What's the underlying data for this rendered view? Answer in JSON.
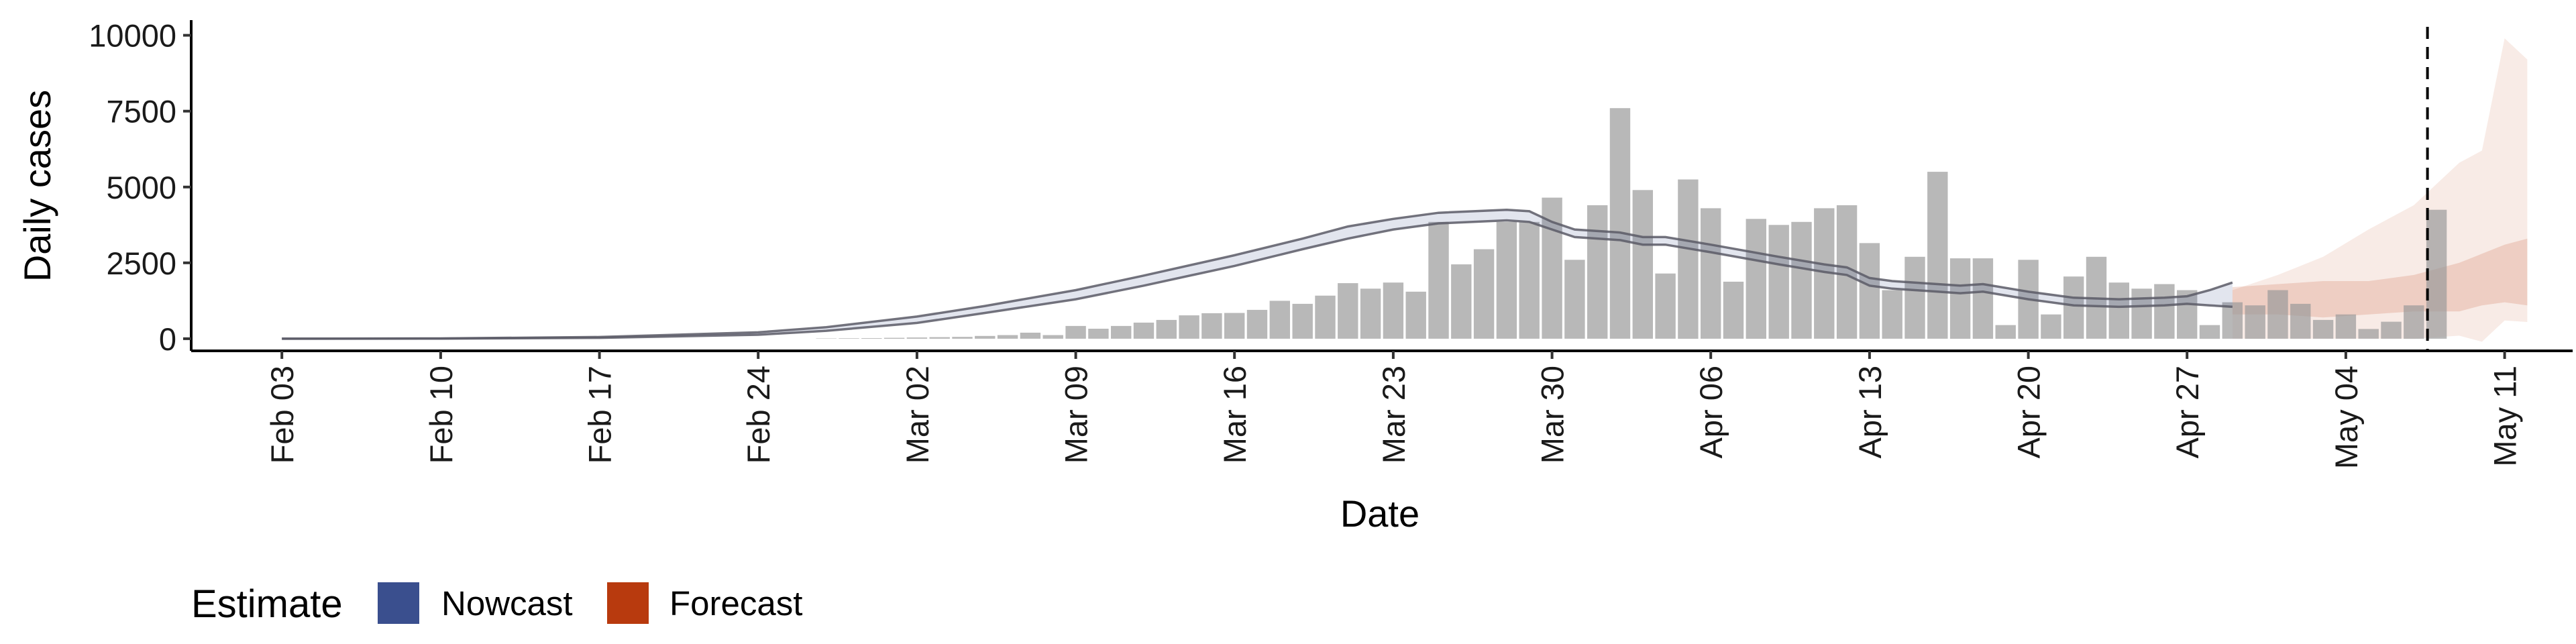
{
  "chart_data": {
    "type": "bar",
    "xlabel": "Date",
    "ylabel": "Daily cases",
    "ylim": [
      -400,
      10500
    ],
    "yticks": [
      0,
      2500,
      5000,
      7500,
      10000
    ],
    "x_start_date": "2020-02-03",
    "x_range_days": [
      -4,
      101
    ],
    "xticks": [
      {
        "day": 0,
        "label": "Feb 03"
      },
      {
        "day": 7,
        "label": "Feb 10"
      },
      {
        "day": 14,
        "label": "Feb 17"
      },
      {
        "day": 21,
        "label": "Feb 24"
      },
      {
        "day": 28,
        "label": "Mar 02"
      },
      {
        "day": 35,
        "label": "Mar 09"
      },
      {
        "day": 42,
        "label": "Mar 16"
      },
      {
        "day": 49,
        "label": "Mar 23"
      },
      {
        "day": 56,
        "label": "Mar 30"
      },
      {
        "day": 63,
        "label": "Apr 06"
      },
      {
        "day": 70,
        "label": "Apr 13"
      },
      {
        "day": 77,
        "label": "Apr 20"
      },
      {
        "day": 84,
        "label": "Apr 27"
      },
      {
        "day": 91,
        "label": "May 04"
      },
      {
        "day": 98,
        "label": "May 11"
      }
    ],
    "vline_day": 94.6,
    "bars_start_day": 24,
    "bars": [
      10,
      15,
      20,
      30,
      40,
      50,
      60,
      90,
      120,
      200,
      120,
      420,
      330,
      420,
      530,
      620,
      770,
      840,
      850,
      950,
      1250,
      1150,
      1420,
      1830,
      1650,
      1850,
      1550,
      3850,
      2450,
      2950,
      3850,
      3850,
      4650,
      2600,
      4400,
      7600,
      4900,
      2150,
      5250,
      4300,
      1880,
      3950,
      3750,
      3850,
      4300,
      4400,
      3150,
      1600,
      2700,
      5500,
      2650,
      2650,
      450,
      2600,
      800,
      2050,
      2700,
      1850,
      1650,
      1800,
      1600,
      450,
      1200,
      1100,
      1600,
      1150,
      620,
      800,
      320,
      560,
      1100,
      4250
    ],
    "series": [
      {
        "name": "Nowcast",
        "color": "#3a4f8e",
        "median": [
          [
            0,
            0
          ],
          [
            7,
            5
          ],
          [
            14,
            40
          ],
          [
            21,
            170
          ],
          [
            24,
            320
          ],
          [
            28,
            620
          ],
          [
            31,
            950
          ],
          [
            35,
            1450
          ],
          [
            38,
            1900
          ],
          [
            42,
            2550
          ],
          [
            45,
            3100
          ],
          [
            47,
            3450
          ],
          [
            49,
            3750
          ],
          [
            51,
            3950
          ],
          [
            54,
            4050
          ],
          [
            55,
            4000
          ],
          [
            56,
            3700
          ],
          [
            57,
            3450
          ],
          [
            59,
            3350
          ],
          [
            60,
            3200
          ],
          [
            61,
            3200
          ],
          [
            63,
            2950
          ],
          [
            66,
            2550
          ],
          [
            68,
            2300
          ],
          [
            69,
            2200
          ],
          [
            70,
            1850
          ],
          [
            71,
            1750
          ],
          [
            73,
            1650
          ],
          [
            74,
            1600
          ],
          [
            75,
            1650
          ],
          [
            77,
            1400
          ],
          [
            79,
            1200
          ],
          [
            81,
            1150
          ],
          [
            83,
            1200
          ],
          [
            84,
            1250
          ],
          [
            85,
            1350
          ],
          [
            86,
            1450
          ]
        ],
        "lower": [
          [
            0,
            0
          ],
          [
            7,
            5
          ],
          [
            14,
            30
          ],
          [
            21,
            130
          ],
          [
            24,
            260
          ],
          [
            28,
            520
          ],
          [
            31,
            850
          ],
          [
            35,
            1300
          ],
          [
            38,
            1750
          ],
          [
            42,
            2400
          ],
          [
            45,
            2950
          ],
          [
            47,
            3300
          ],
          [
            49,
            3600
          ],
          [
            51,
            3800
          ],
          [
            54,
            3900
          ],
          [
            55,
            3850
          ],
          [
            56,
            3600
          ],
          [
            57,
            3350
          ],
          [
            59,
            3250
          ],
          [
            60,
            3100
          ],
          [
            61,
            3100
          ],
          [
            63,
            2850
          ],
          [
            66,
            2450
          ],
          [
            68,
            2200
          ],
          [
            69,
            2100
          ],
          [
            70,
            1750
          ],
          [
            71,
            1650
          ],
          [
            73,
            1550
          ],
          [
            74,
            1500
          ],
          [
            75,
            1550
          ],
          [
            77,
            1300
          ],
          [
            79,
            1100
          ],
          [
            81,
            1050
          ],
          [
            83,
            1100
          ],
          [
            84,
            1150
          ],
          [
            85,
            1100
          ],
          [
            86,
            1050
          ]
        ],
        "upper": [
          [
            0,
            0
          ],
          [
            7,
            8
          ],
          [
            14,
            55
          ],
          [
            21,
            210
          ],
          [
            24,
            380
          ],
          [
            28,
            730
          ],
          [
            31,
            1080
          ],
          [
            35,
            1600
          ],
          [
            38,
            2080
          ],
          [
            42,
            2750
          ],
          [
            45,
            3300
          ],
          [
            47,
            3700
          ],
          [
            49,
            3950
          ],
          [
            51,
            4150
          ],
          [
            54,
            4250
          ],
          [
            55,
            4200
          ],
          [
            56,
            3850
          ],
          [
            57,
            3600
          ],
          [
            59,
            3500
          ],
          [
            60,
            3350
          ],
          [
            61,
            3350
          ],
          [
            63,
            3100
          ],
          [
            66,
            2700
          ],
          [
            68,
            2450
          ],
          [
            69,
            2350
          ],
          [
            70,
            2000
          ],
          [
            71,
            1900
          ],
          [
            73,
            1800
          ],
          [
            74,
            1750
          ],
          [
            75,
            1800
          ],
          [
            77,
            1550
          ],
          [
            79,
            1350
          ],
          [
            81,
            1300
          ],
          [
            83,
            1350
          ],
          [
            84,
            1400
          ],
          [
            85,
            1600
          ],
          [
            86,
            1850
          ]
        ]
      },
      {
        "name": "Forecast",
        "color": "#b83a0e",
        "outer_lower": [
          [
            86,
            0
          ],
          [
            88,
            0
          ],
          [
            90,
            0
          ],
          [
            92,
            0
          ],
          [
            94,
            0
          ],
          [
            96,
            100
          ],
          [
            97,
            -100
          ],
          [
            98,
            600
          ],
          [
            99,
            550
          ]
        ],
        "outer_upper": [
          [
            86,
            1600
          ],
          [
            88,
            2100
          ],
          [
            90,
            2700
          ],
          [
            92,
            3600
          ],
          [
            94,
            4400
          ],
          [
            96,
            5800
          ],
          [
            97,
            6200
          ],
          [
            98,
            9900
          ],
          [
            99,
            9200
          ]
        ],
        "inner_lower": [
          [
            86,
            800
          ],
          [
            88,
            800
          ],
          [
            90,
            700
          ],
          [
            92,
            800
          ],
          [
            94,
            900
          ],
          [
            96,
            900
          ],
          [
            97,
            1100
          ],
          [
            98,
            1200
          ],
          [
            99,
            1100
          ]
        ],
        "inner_upper": [
          [
            86,
            1700
          ],
          [
            88,
            1800
          ],
          [
            90,
            1900
          ],
          [
            92,
            1900
          ],
          [
            94,
            2100
          ],
          [
            96,
            2500
          ],
          [
            97,
            2800
          ],
          [
            98,
            3100
          ],
          [
            99,
            3300
          ]
        ]
      }
    ],
    "legend": {
      "title": "Estimate",
      "position": "bottom-left",
      "entries": [
        {
          "label": "Nowcast",
          "color": "#3a4f8e"
        },
        {
          "label": "Forecast",
          "color": "#b83a0e"
        }
      ]
    },
    "grid": false
  }
}
